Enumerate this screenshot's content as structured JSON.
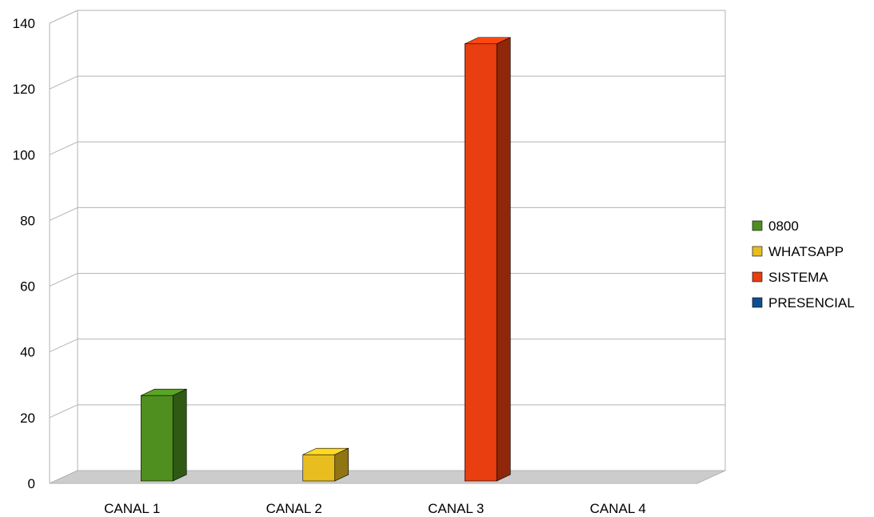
{
  "chart_data": {
    "type": "bar",
    "style": "3d-clustered",
    "categories": [
      "CANAL 1",
      "CANAL 2",
      "CANAL 3",
      "CANAL 4"
    ],
    "series": [
      {
        "name": "0800",
        "color": "#4e8f1f",
        "values": [
          26,
          null,
          null,
          null
        ]
      },
      {
        "name": "WHATSAPP",
        "color": "#e8bd1f",
        "values": [
          null,
          8,
          null,
          null
        ]
      },
      {
        "name": "SISTEMA",
        "color": "#e83e10",
        "values": [
          null,
          null,
          133,
          null
        ]
      },
      {
        "name": "PRESENCIAL",
        "color": "#0f4f8f",
        "values": [
          null,
          null,
          null,
          0
        ]
      }
    ],
    "y_ticks": [
      "0",
      "20",
      "40",
      "60",
      "80",
      "100",
      "120",
      "140"
    ],
    "ylim": [
      0,
      140
    ],
    "grid": true,
    "legend_position": "right"
  }
}
